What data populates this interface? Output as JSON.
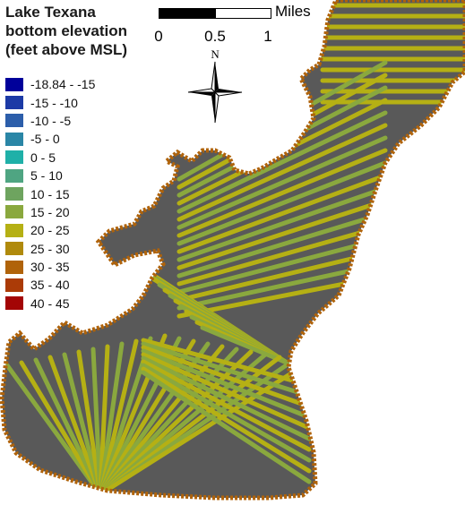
{
  "legend": {
    "title_lines": [
      "Lake Texana",
      "bottom elevation",
      "(feet above MSL)"
    ],
    "items": [
      {
        "label": "-18.84 - -15",
        "color": "#00009a"
      },
      {
        "label": "-15 - -10",
        "color": "#1c3aa6"
      },
      {
        "label": "-10 - -5",
        "color": "#2c5eaa"
      },
      {
        "label": "-5 - 0",
        "color": "#2a86a6"
      },
      {
        "label": "0 - 5",
        "color": "#1fb0a8"
      },
      {
        "label": "5 - 10",
        "color": "#4fa582"
      },
      {
        "label": "10 - 15",
        "color": "#6ea45f"
      },
      {
        "label": "15 - 20",
        "color": "#8aa83e"
      },
      {
        "label": "20 - 25",
        "color": "#b5b014"
      },
      {
        "label": "25 - 30",
        "color": "#b08a0c"
      },
      {
        "label": "30 - 35",
        "color": "#b0630a"
      },
      {
        "label": "35 - 40",
        "color": "#ab3b07"
      },
      {
        "label": "40 - 45",
        "color": "#a30505"
      }
    ]
  },
  "scale_bar": {
    "unit": "Miles",
    "ticks": [
      "0",
      "0.5",
      "1"
    ]
  },
  "north_arrow": {
    "label": "N"
  },
  "colors": {
    "lake_fill": "#595959",
    "transect": "#b5b014",
    "transect_alt": "#8aa83e",
    "shore": "#b0630a"
  }
}
